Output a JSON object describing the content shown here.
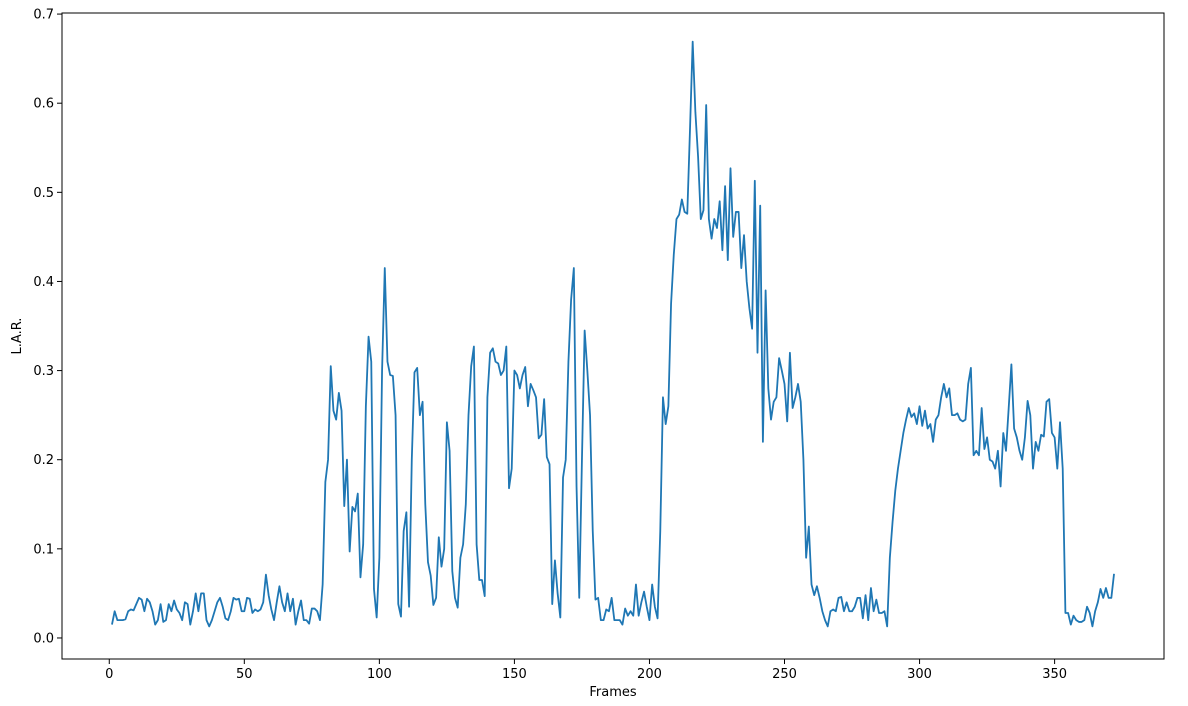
{
  "chart_data": {
    "type": "line",
    "xlabel": "Frames",
    "ylabel": "L.A.R.",
    "color": "#1f77b4",
    "x": [
      1,
      2,
      3,
      4,
      5,
      6,
      7,
      8,
      9,
      10,
      11,
      12,
      13,
      14,
      15,
      16,
      17,
      18,
      19,
      20,
      21,
      22,
      23,
      24,
      25,
      26,
      27,
      28,
      29,
      30,
      31,
      32,
      33,
      34,
      35,
      36,
      37,
      38,
      39,
      40,
      41,
      42,
      43,
      44,
      45,
      46,
      47,
      48,
      49,
      50,
      51,
      52,
      53,
      54,
      55,
      56,
      57,
      58,
      59,
      60,
      61,
      62,
      63,
      64,
      65,
      66,
      67,
      68,
      69,
      70,
      71,
      72,
      73,
      74,
      75,
      76,
      77,
      78,
      79,
      80,
      81,
      82,
      83,
      84,
      85,
      86,
      87,
      88,
      89,
      90,
      91,
      92,
      93,
      94,
      95,
      96,
      97,
      98,
      99,
      100,
      101,
      102,
      103,
      104,
      105,
      106,
      107,
      108,
      109,
      110,
      111,
      112,
      113,
      114,
      115,
      116,
      117,
      118,
      119,
      120,
      121,
      122,
      123,
      124,
      125,
      126,
      127,
      128,
      129,
      130,
      131,
      132,
      133,
      134,
      135,
      136,
      137,
      138,
      139,
      140,
      141,
      142,
      143,
      144,
      145,
      146,
      147,
      148,
      149,
      150,
      151,
      152,
      153,
      154,
      155,
      156,
      157,
      158,
      159,
      160,
      161,
      162,
      163,
      164,
      165,
      166,
      167,
      168,
      169,
      170,
      171,
      172,
      173,
      174,
      175,
      176,
      177,
      178,
      179,
      180,
      181,
      182,
      183,
      184,
      185,
      186,
      187,
      188,
      189,
      190,
      191,
      192,
      193,
      194,
      195,
      196,
      197,
      198,
      199,
      200,
      201,
      202,
      203,
      204,
      205,
      206,
      207,
      208,
      209,
      210,
      211,
      212,
      213,
      214,
      215,
      216,
      217,
      218,
      219,
      220,
      221,
      222,
      223,
      224,
      225,
      226,
      227,
      228,
      229,
      230,
      231,
      232,
      233,
      234,
      235,
      236,
      237,
      238,
      239,
      240,
      241,
      242,
      243,
      244,
      245,
      246,
      247,
      248,
      249,
      250,
      251,
      252,
      253,
      254,
      255,
      256,
      257,
      258,
      259,
      260,
      261,
      262,
      263,
      264,
      265,
      266,
      267,
      268,
      269,
      270,
      271,
      272,
      273,
      274,
      275,
      276,
      277,
      278,
      279,
      280,
      281,
      282,
      283,
      284,
      285,
      286,
      287,
      288,
      289,
      290,
      291,
      292,
      293,
      294,
      295,
      296,
      297,
      298,
      299,
      300,
      301,
      302,
      303,
      304,
      305,
      306,
      307,
      308,
      309,
      310,
      311,
      312,
      313,
      314,
      315,
      316,
      317,
      318,
      319,
      320,
      321,
      322,
      323,
      324,
      325,
      326,
      327,
      328,
      329,
      330,
      331,
      332,
      333,
      334,
      335,
      336,
      337,
      338,
      339,
      340,
      341,
      342,
      343,
      344,
      345,
      346,
      347,
      348,
      349,
      350,
      351,
      352,
      353,
      354,
      355,
      356,
      357,
      358,
      359,
      360,
      361,
      362,
      363,
      364,
      365,
      366,
      367,
      368,
      369,
      370,
      371,
      372
    ],
    "values": [
      0.015,
      0.03,
      0.02,
      0.02,
      0.02,
      0.021,
      0.03,
      0.032,
      0.031,
      0.038,
      0.045,
      0.043,
      0.03,
      0.044,
      0.04,
      0.03,
      0.015,
      0.02,
      0.038,
      0.018,
      0.02,
      0.038,
      0.03,
      0.042,
      0.032,
      0.028,
      0.02,
      0.04,
      0.038,
      0.015,
      0.03,
      0.05,
      0.03,
      0.05,
      0.05,
      0.02,
      0.013,
      0.02,
      0.03,
      0.04,
      0.045,
      0.035,
      0.022,
      0.02,
      0.03,
      0.045,
      0.043,
      0.044,
      0.03,
      0.03,
      0.045,
      0.044,
      0.028,
      0.032,
      0.03,
      0.032,
      0.04,
      0.071,
      0.048,
      0.032,
      0.02,
      0.04,
      0.058,
      0.04,
      0.03,
      0.05,
      0.03,
      0.044,
      0.015,
      0.03,
      0.042,
      0.02,
      0.02,
      0.016,
      0.033,
      0.033,
      0.03,
      0.02,
      0.06,
      0.175,
      0.2,
      0.305,
      0.255,
      0.245,
      0.275,
      0.255,
      0.148,
      0.2,
      0.097,
      0.147,
      0.142,
      0.162,
      0.068,
      0.105,
      0.26,
      0.338,
      0.31,
      0.055,
      0.023,
      0.09,
      0.3,
      0.415,
      0.31,
      0.295,
      0.294,
      0.25,
      0.038,
      0.024,
      0.12,
      0.141,
      0.035,
      0.2,
      0.298,
      0.303,
      0.25,
      0.265,
      0.15,
      0.085,
      0.07,
      0.037,
      0.045,
      0.113,
      0.08,
      0.1,
      0.242,
      0.21,
      0.075,
      0.045,
      0.034,
      0.09,
      0.105,
      0.15,
      0.25,
      0.305,
      0.327,
      0.105,
      0.065,
      0.065,
      0.047,
      0.27,
      0.32,
      0.325,
      0.31,
      0.308,
      0.295,
      0.3,
      0.327,
      0.168,
      0.19,
      0.3,
      0.295,
      0.28,
      0.295,
      0.304,
      0.26,
      0.285,
      0.278,
      0.27,
      0.224,
      0.228,
      0.268,
      0.203,
      0.195,
      0.038,
      0.087,
      0.05,
      0.023,
      0.18,
      0.2,
      0.31,
      0.38,
      0.415,
      0.17,
      0.045,
      0.2,
      0.345,
      0.3,
      0.25,
      0.12,
      0.043,
      0.045,
      0.02,
      0.02,
      0.032,
      0.03,
      0.045,
      0.02,
      0.02,
      0.02,
      0.015,
      0.033,
      0.025,
      0.03,
      0.025,
      0.06,
      0.025,
      0.04,
      0.052,
      0.035,
      0.02,
      0.06,
      0.035,
      0.022,
      0.12,
      0.27,
      0.24,
      0.26,
      0.375,
      0.43,
      0.47,
      0.475,
      0.492,
      0.478,
      0.476,
      0.57,
      0.669,
      0.59,
      0.54,
      0.47,
      0.48,
      0.598,
      0.47,
      0.448,
      0.47,
      0.46,
      0.49,
      0.435,
      0.507,
      0.424,
      0.527,
      0.45,
      0.478,
      0.478,
      0.415,
      0.452,
      0.4,
      0.37,
      0.347,
      0.513,
      0.32,
      0.485,
      0.22,
      0.39,
      0.28,
      0.245,
      0.265,
      0.27,
      0.314,
      0.3,
      0.285,
      0.243,
      0.32,
      0.258,
      0.27,
      0.285,
      0.265,
      0.2,
      0.09,
      0.125,
      0.06,
      0.048,
      0.058,
      0.045,
      0.03,
      0.02,
      0.013,
      0.03,
      0.032,
      0.03,
      0.045,
      0.046,
      0.03,
      0.04,
      0.03,
      0.03,
      0.035,
      0.045,
      0.045,
      0.022,
      0.048,
      0.02,
      0.056,
      0.03,
      0.043,
      0.028,
      0.028,
      0.03,
      0.013,
      0.09,
      0.13,
      0.165,
      0.19,
      0.21,
      0.23,
      0.245,
      0.258,
      0.248,
      0.252,
      0.24,
      0.26,
      0.238,
      0.255,
      0.235,
      0.24,
      0.22,
      0.245,
      0.25,
      0.27,
      0.285,
      0.27,
      0.28,
      0.25,
      0.25,
      0.252,
      0.245,
      0.243,
      0.245,
      0.285,
      0.303,
      0.205,
      0.21,
      0.205,
      0.258,
      0.212,
      0.225,
      0.2,
      0.198,
      0.19,
      0.21,
      0.17,
      0.23,
      0.21,
      0.258,
      0.307,
      0.235,
      0.225,
      0.21,
      0.2,
      0.225,
      0.266,
      0.25,
      0.19,
      0.22,
      0.21,
      0.228,
      0.226,
      0.265,
      0.268,
      0.23,
      0.225,
      0.19,
      0.242,
      0.19,
      0.028,
      0.028,
      0.015,
      0.025,
      0.02,
      0.018,
      0.018,
      0.02,
      0.035,
      0.028,
      0.013,
      0.03,
      0.04,
      0.055,
      0.045,
      0.056,
      0.045,
      0.045,
      0.072
    ],
    "xlim": [
      -17.5,
      390.5
    ],
    "xticks": [
      0,
      50,
      100,
      150,
      200,
      250,
      300,
      350
    ],
    "ylim": [
      -0.0236,
      0.7012
    ],
    "yticks": [
      {
        "value": 0,
        "label": "0.0"
      },
      0.1,
      0.2,
      0.3,
      0.4,
      0.5,
      0.6,
      0.7
    ]
  }
}
